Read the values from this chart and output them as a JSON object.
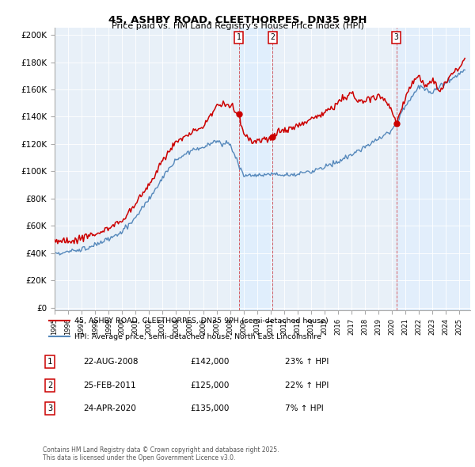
{
  "title1": "45, ASHBY ROAD, CLEETHORPES, DN35 9PH",
  "title2": "Price paid vs. HM Land Registry's House Price Index (HPI)",
  "ylabel_ticks": [
    "£0",
    "£20K",
    "£40K",
    "£60K",
    "£80K",
    "£100K",
    "£120K",
    "£140K",
    "£160K",
    "£180K",
    "£200K"
  ],
  "ytick_values": [
    0,
    20000,
    40000,
    60000,
    80000,
    100000,
    120000,
    140000,
    160000,
    180000,
    200000
  ],
  "ylim": [
    -2000,
    205000
  ],
  "xlim_start": 1995.0,
  "xlim_end": 2025.8,
  "legend_line1": "45, ASHBY ROAD, CLEETHORPES, DN35 9PH (semi-detached house)",
  "legend_line2": "HPI: Average price, semi-detached house, North East Lincolnshire",
  "red_color": "#cc0000",
  "blue_color": "#5588bb",
  "shade_color": "#ddeeff",
  "sale1_date": "22-AUG-2008",
  "sale1_price": "£142,000",
  "sale1_hpi": "23% ↑ HPI",
  "sale2_date": "25-FEB-2011",
  "sale2_price": "£125,000",
  "sale2_hpi": "22% ↑ HPI",
  "sale3_date": "24-APR-2020",
  "sale3_price": "£135,000",
  "sale3_hpi": "7% ↑ HPI",
  "footnote": "Contains HM Land Registry data © Crown copyright and database right 2025.\nThis data is licensed under the Open Government Licence v3.0.",
  "marker1_x": 2008.64,
  "marker1_y": 142000,
  "marker2_x": 2011.15,
  "marker2_y": 125000,
  "marker3_x": 2020.32,
  "marker3_y": 135000,
  "background_color": "#e8f0f8"
}
